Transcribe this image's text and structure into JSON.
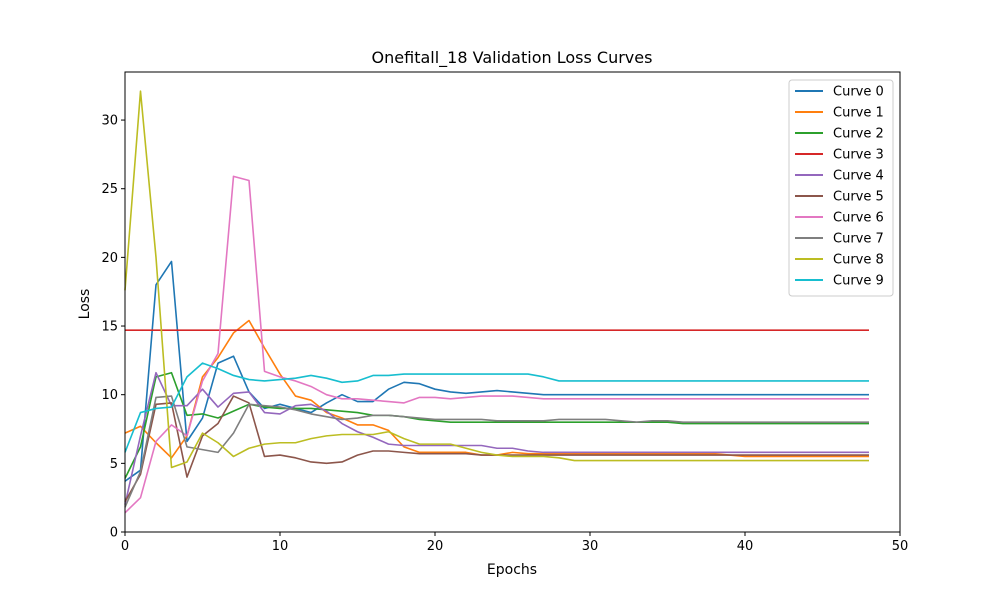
{
  "chart_data": {
    "type": "line",
    "title": "Onefitall_18 Validation Loss Curves",
    "xlabel": "Epochs",
    "ylabel": "Loss",
    "xlim": [
      0,
      50
    ],
    "ylim": [
      0,
      33.5
    ],
    "xticks": [
      0,
      10,
      20,
      30,
      40,
      50
    ],
    "yticks": [
      0,
      5,
      10,
      15,
      20,
      25,
      30
    ],
    "grid": false,
    "legend": "top-right",
    "x": [
      0,
      1,
      2,
      3,
      4,
      5,
      6,
      7,
      8,
      9,
      10,
      11,
      12,
      13,
      14,
      15,
      16,
      17,
      18,
      19,
      20,
      21,
      22,
      23,
      24,
      25,
      26,
      27,
      28,
      29,
      30,
      31,
      32,
      33,
      34,
      35,
      36,
      37,
      38,
      39,
      40,
      41,
      42,
      43,
      44,
      45,
      46,
      47,
      48
    ],
    "series": [
      {
        "name": "Curve 0",
        "color": "#1f77b4",
        "values": [
          3.7,
          4.5,
          18.0,
          19.7,
          6.6,
          8.3,
          12.3,
          12.8,
          10.2,
          9.0,
          9.3,
          9.0,
          8.7,
          9.4,
          10.0,
          9.5,
          9.5,
          10.4,
          10.9,
          10.8,
          10.4,
          10.2,
          10.1,
          10.2,
          10.3,
          10.2,
          10.1,
          10.0,
          10.0,
          10.0,
          10.0,
          10.0,
          10.0,
          10.0,
          10.0,
          10.0,
          10.0,
          10.0,
          10.0,
          10.0,
          10.0,
          10.0,
          10.0,
          10.0,
          10.0,
          10.0,
          10.0,
          10.0,
          10.0
        ]
      },
      {
        "name": "Curve 1",
        "color": "#ff7f0e",
        "values": [
          7.2,
          7.7,
          6.5,
          5.4,
          7.0,
          11.3,
          12.7,
          14.5,
          15.4,
          13.4,
          11.5,
          9.9,
          9.6,
          8.7,
          8.3,
          7.8,
          7.8,
          7.4,
          6.2,
          5.8,
          5.8,
          5.8,
          5.8,
          5.6,
          5.6,
          5.8,
          5.7,
          5.7,
          5.7,
          5.7,
          5.7,
          5.7,
          5.7,
          5.7,
          5.7,
          5.7,
          5.7,
          5.7,
          5.7,
          5.6,
          5.5,
          5.5,
          5.5,
          5.5,
          5.5,
          5.5,
          5.5,
          5.5,
          5.5
        ]
      },
      {
        "name": "Curve 2",
        "color": "#2ca02c",
        "values": [
          3.9,
          6.2,
          11.3,
          11.6,
          8.5,
          8.6,
          8.3,
          8.8,
          9.3,
          9.1,
          9.0,
          9.0,
          9.0,
          8.9,
          8.8,
          8.7,
          8.5,
          8.5,
          8.4,
          8.2,
          8.1,
          8.0,
          8.0,
          8.0,
          8.0,
          8.0,
          8.0,
          8.0,
          8.0,
          8.0,
          8.0,
          8.0,
          8.0,
          8.0,
          8.0,
          8.0,
          7.9,
          7.9,
          7.9,
          7.9,
          7.9,
          7.9,
          7.9,
          7.9,
          7.9,
          7.9,
          7.9,
          7.9,
          7.9
        ]
      },
      {
        "name": "Curve 3",
        "color": "#d62728",
        "values": [
          14.7,
          14.7,
          14.7,
          14.7,
          14.7,
          14.7,
          14.7,
          14.7,
          14.7,
          14.7,
          14.7,
          14.7,
          14.7,
          14.7,
          14.7,
          14.7,
          14.7,
          14.7,
          14.7,
          14.7,
          14.7,
          14.7,
          14.7,
          14.7,
          14.7,
          14.7,
          14.7,
          14.7,
          14.7,
          14.7,
          14.7,
          14.7,
          14.7,
          14.7,
          14.7,
          14.7,
          14.7,
          14.7,
          14.7,
          14.7,
          14.7,
          14.7,
          14.7,
          14.7,
          14.7,
          14.7,
          14.7,
          14.7,
          14.7
        ]
      },
      {
        "name": "Curve 4",
        "color": "#9467bd",
        "values": [
          2.0,
          7.0,
          11.6,
          9.2,
          9.2,
          10.4,
          9.1,
          10.1,
          10.2,
          8.7,
          8.6,
          9.2,
          9.3,
          8.8,
          7.9,
          7.3,
          6.9,
          6.4,
          6.3,
          6.3,
          6.3,
          6.3,
          6.3,
          6.3,
          6.1,
          6.1,
          5.9,
          5.8,
          5.8,
          5.8,
          5.8,
          5.8,
          5.8,
          5.8,
          5.8,
          5.8,
          5.8,
          5.8,
          5.8,
          5.8,
          5.8,
          5.8,
          5.8,
          5.8,
          5.8,
          5.8,
          5.8,
          5.8,
          5.8
        ]
      },
      {
        "name": "Curve 5",
        "color": "#8c564b",
        "values": [
          2.2,
          4.2,
          9.3,
          9.4,
          4.0,
          7.0,
          7.9,
          9.9,
          9.4,
          5.5,
          5.6,
          5.4,
          5.1,
          5.0,
          5.1,
          5.6,
          5.9,
          5.9,
          5.8,
          5.7,
          5.7,
          5.7,
          5.7,
          5.6,
          5.6,
          5.6,
          5.6,
          5.6,
          5.6,
          5.6,
          5.6,
          5.6,
          5.6,
          5.6,
          5.6,
          5.6,
          5.6,
          5.6,
          5.6,
          5.6,
          5.6,
          5.6,
          5.6,
          5.6,
          5.6,
          5.6,
          5.6,
          5.6,
          5.6
        ]
      },
      {
        "name": "Curve 6",
        "color": "#e377c2",
        "values": [
          1.4,
          2.5,
          6.6,
          7.8,
          7.0,
          11.0,
          13.0,
          25.9,
          25.6,
          11.7,
          11.3,
          11.0,
          10.6,
          10.0,
          9.7,
          9.7,
          9.6,
          9.5,
          9.4,
          9.8,
          9.8,
          9.7,
          9.8,
          9.9,
          9.9,
          9.9,
          9.8,
          9.7,
          9.7,
          9.7,
          9.7,
          9.7,
          9.7,
          9.7,
          9.7,
          9.7,
          9.7,
          9.7,
          9.7,
          9.7,
          9.7,
          9.7,
          9.7,
          9.7,
          9.7,
          9.7,
          9.7,
          9.7,
          9.7
        ]
      },
      {
        "name": "Curve 7",
        "color": "#7f7f7f",
        "values": [
          1.8,
          4.4,
          9.8,
          9.9,
          6.2,
          6.0,
          5.8,
          7.2,
          9.3,
          9.2,
          9.1,
          8.9,
          8.6,
          8.4,
          8.2,
          8.3,
          8.5,
          8.5,
          8.4,
          8.3,
          8.2,
          8.2,
          8.2,
          8.2,
          8.1,
          8.1,
          8.1,
          8.1,
          8.2,
          8.2,
          8.2,
          8.2,
          8.1,
          8.0,
          8.1,
          8.1,
          8.0,
          8.0,
          8.0,
          8.0,
          8.0,
          8.0,
          8.0,
          8.0,
          8.0,
          8.0,
          8.0,
          8.0,
          8.0
        ]
      },
      {
        "name": "Curve 8",
        "color": "#bcbd22",
        "values": [
          17.6,
          32.1,
          20.0,
          4.7,
          5.1,
          7.2,
          6.5,
          5.5,
          6.1,
          6.4,
          6.5,
          6.5,
          6.8,
          7.0,
          7.1,
          7.1,
          7.1,
          7.3,
          6.8,
          6.4,
          6.4,
          6.4,
          6.1,
          5.8,
          5.6,
          5.5,
          5.5,
          5.5,
          5.4,
          5.2,
          5.2,
          5.2,
          5.2,
          5.2,
          5.2,
          5.2,
          5.2,
          5.2,
          5.2,
          5.2,
          5.2,
          5.2,
          5.2,
          5.2,
          5.2,
          5.2,
          5.2,
          5.2,
          5.2
        ]
      },
      {
        "name": "Curve 9",
        "color": "#17becf",
        "values": [
          5.8,
          8.7,
          9.0,
          9.1,
          11.3,
          12.3,
          11.9,
          11.4,
          11.1,
          11.0,
          11.1,
          11.2,
          11.4,
          11.2,
          10.9,
          11.0,
          11.4,
          11.4,
          11.5,
          11.5,
          11.5,
          11.5,
          11.5,
          11.5,
          11.5,
          11.5,
          11.5,
          11.3,
          11.0,
          11.0,
          11.0,
          11.0,
          11.0,
          11.0,
          11.0,
          11.0,
          11.0,
          11.0,
          11.0,
          11.0,
          11.0,
          11.0,
          11.0,
          11.0,
          11.0,
          11.0,
          11.0,
          11.0,
          11.0
        ]
      }
    ]
  }
}
